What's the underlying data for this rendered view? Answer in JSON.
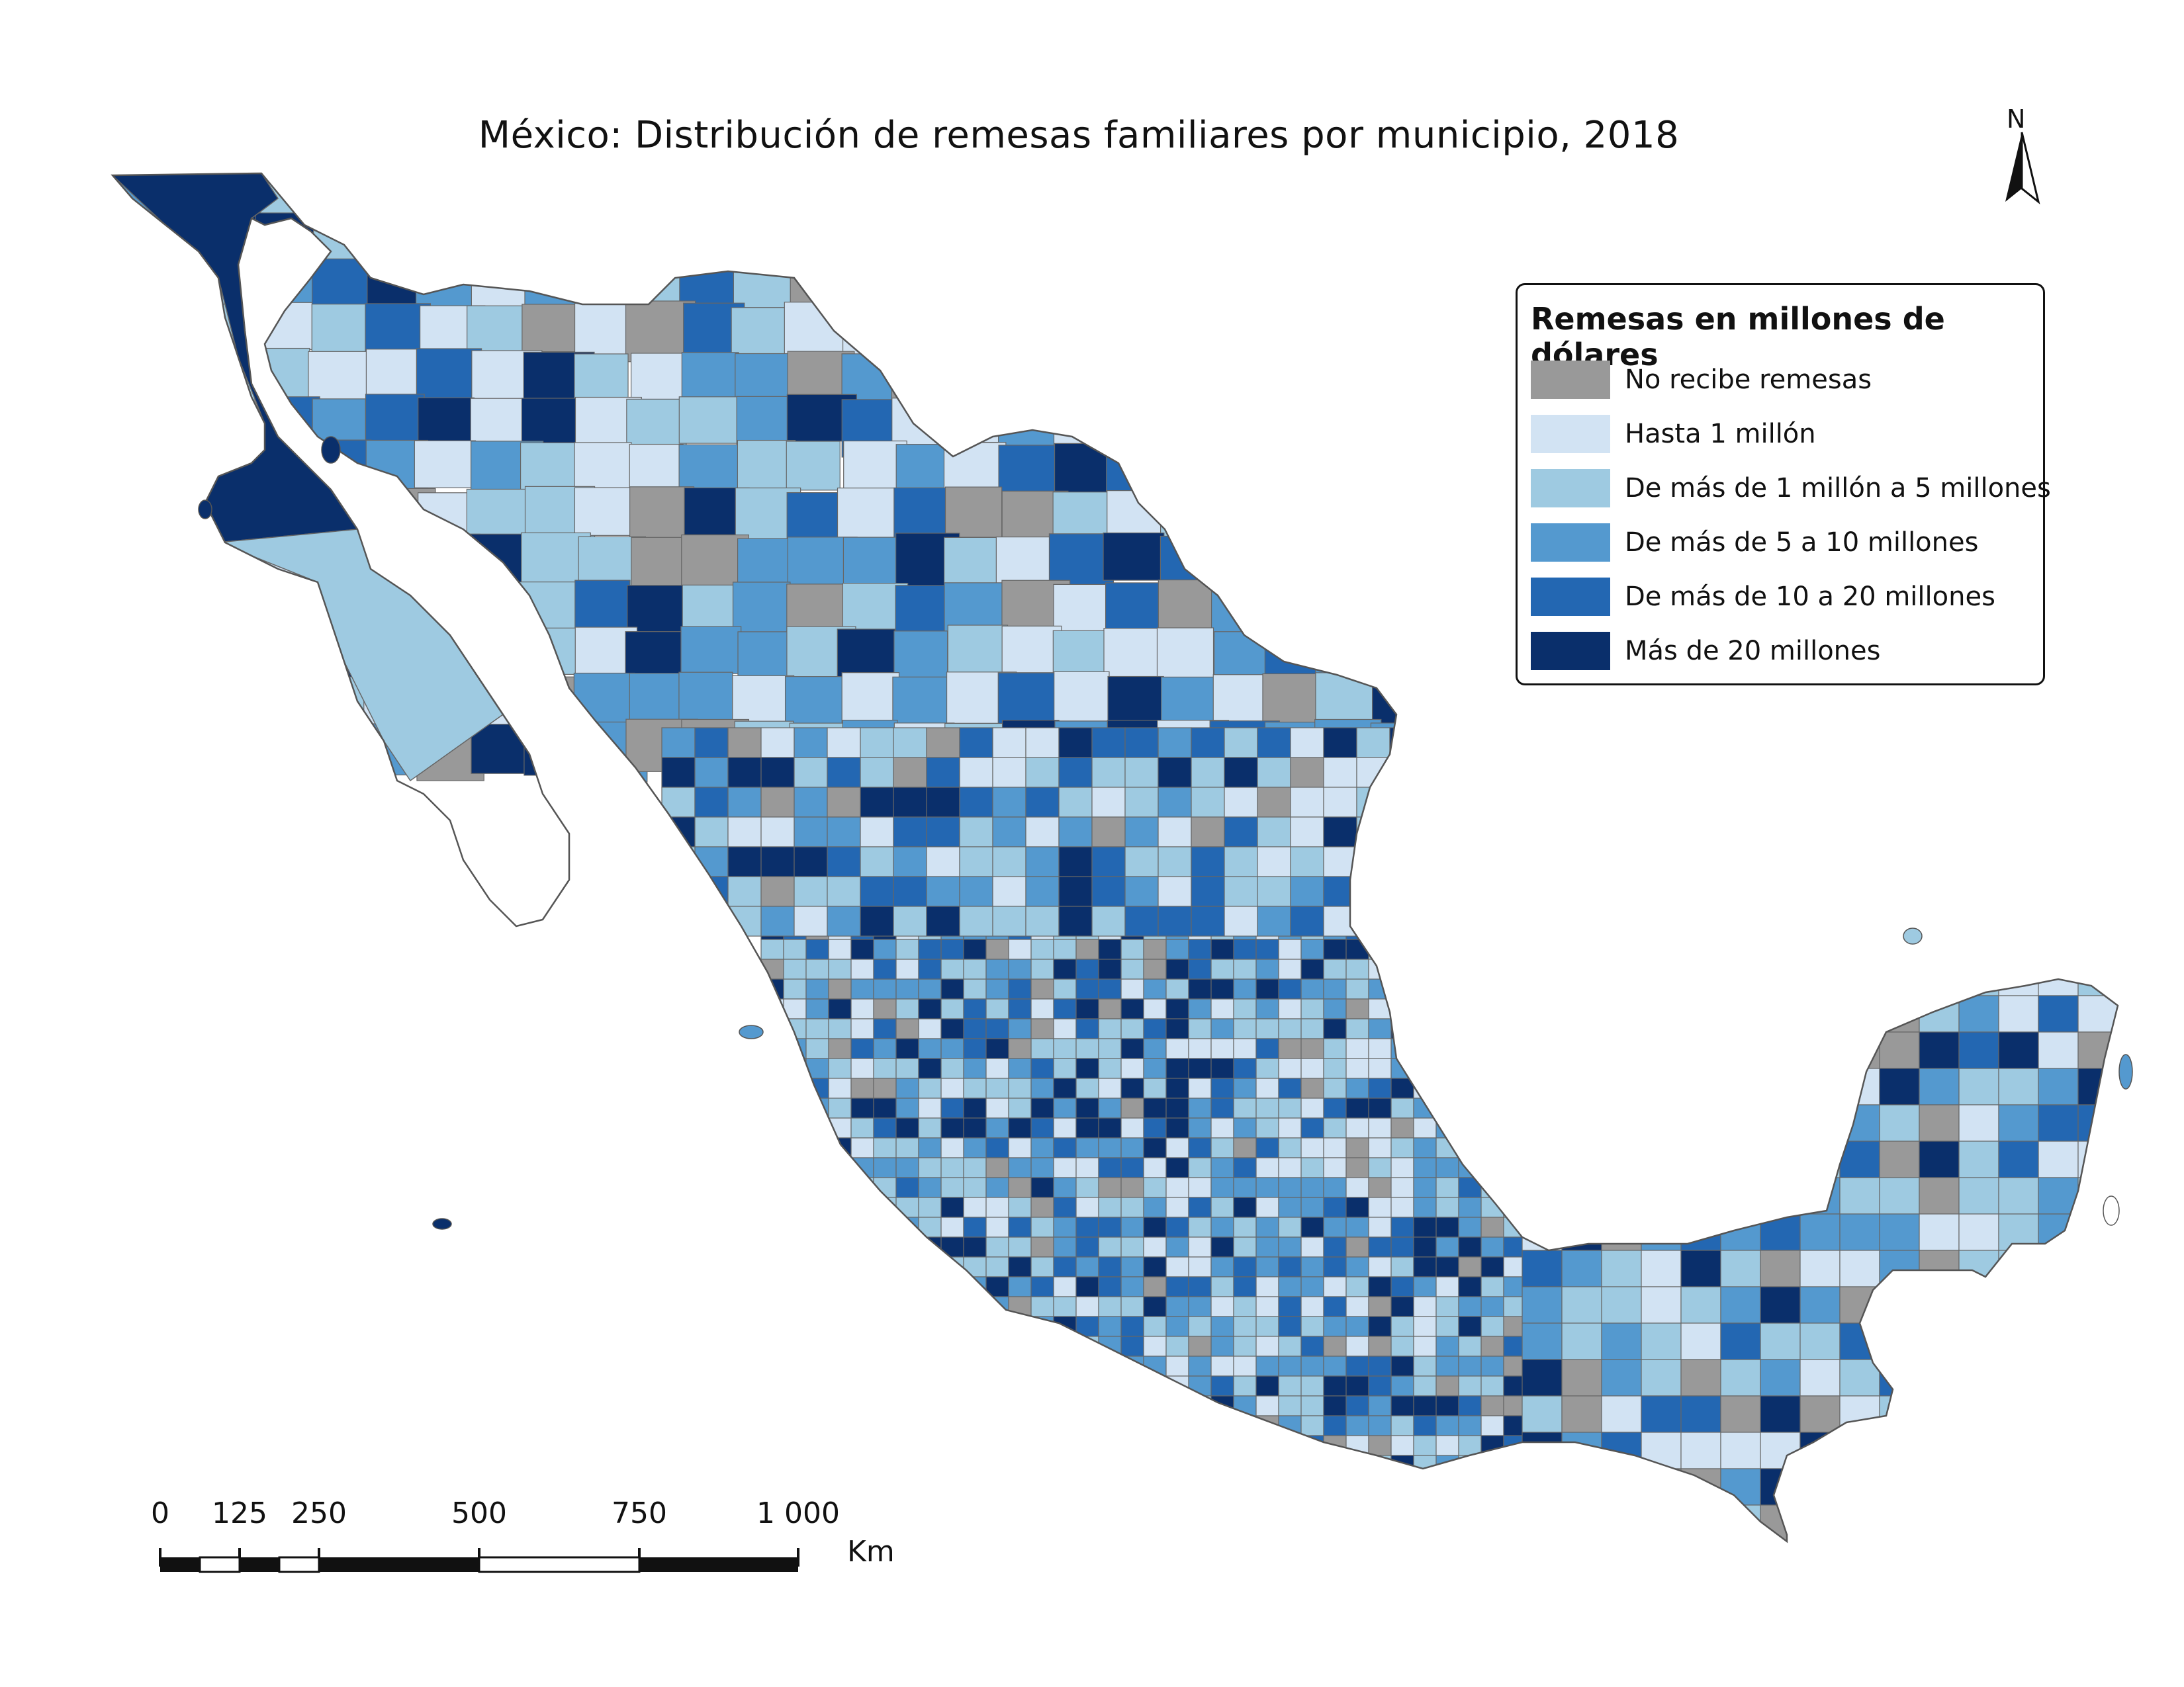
{
  "title": "México: Distribución de remesas familiares por municipio, 2018",
  "north_arrow": {
    "label": "N"
  },
  "legend": {
    "title": "Remesas en millones de dólares",
    "items": [
      {
        "label": "No recibe remesas",
        "color": "#999999"
      },
      {
        "label": "Hasta 1 millón",
        "color": "#d2e3f3"
      },
      {
        "label": "De más de 1 millón a 5 millones",
        "color": "#9ecae1"
      },
      {
        "label": "De más de 5 a 10 millones",
        "color": "#5499cf"
      },
      {
        "label": "De más de 10 a 20 millones",
        "color": "#2367b2"
      },
      {
        "label": "Más de 20 millones",
        "color": "#0a2f6b"
      }
    ]
  },
  "scale_bar": {
    "ticks": [
      "0",
      "125",
      "250",
      "500",
      "750",
      "1 000"
    ],
    "unit": "Km"
  }
}
